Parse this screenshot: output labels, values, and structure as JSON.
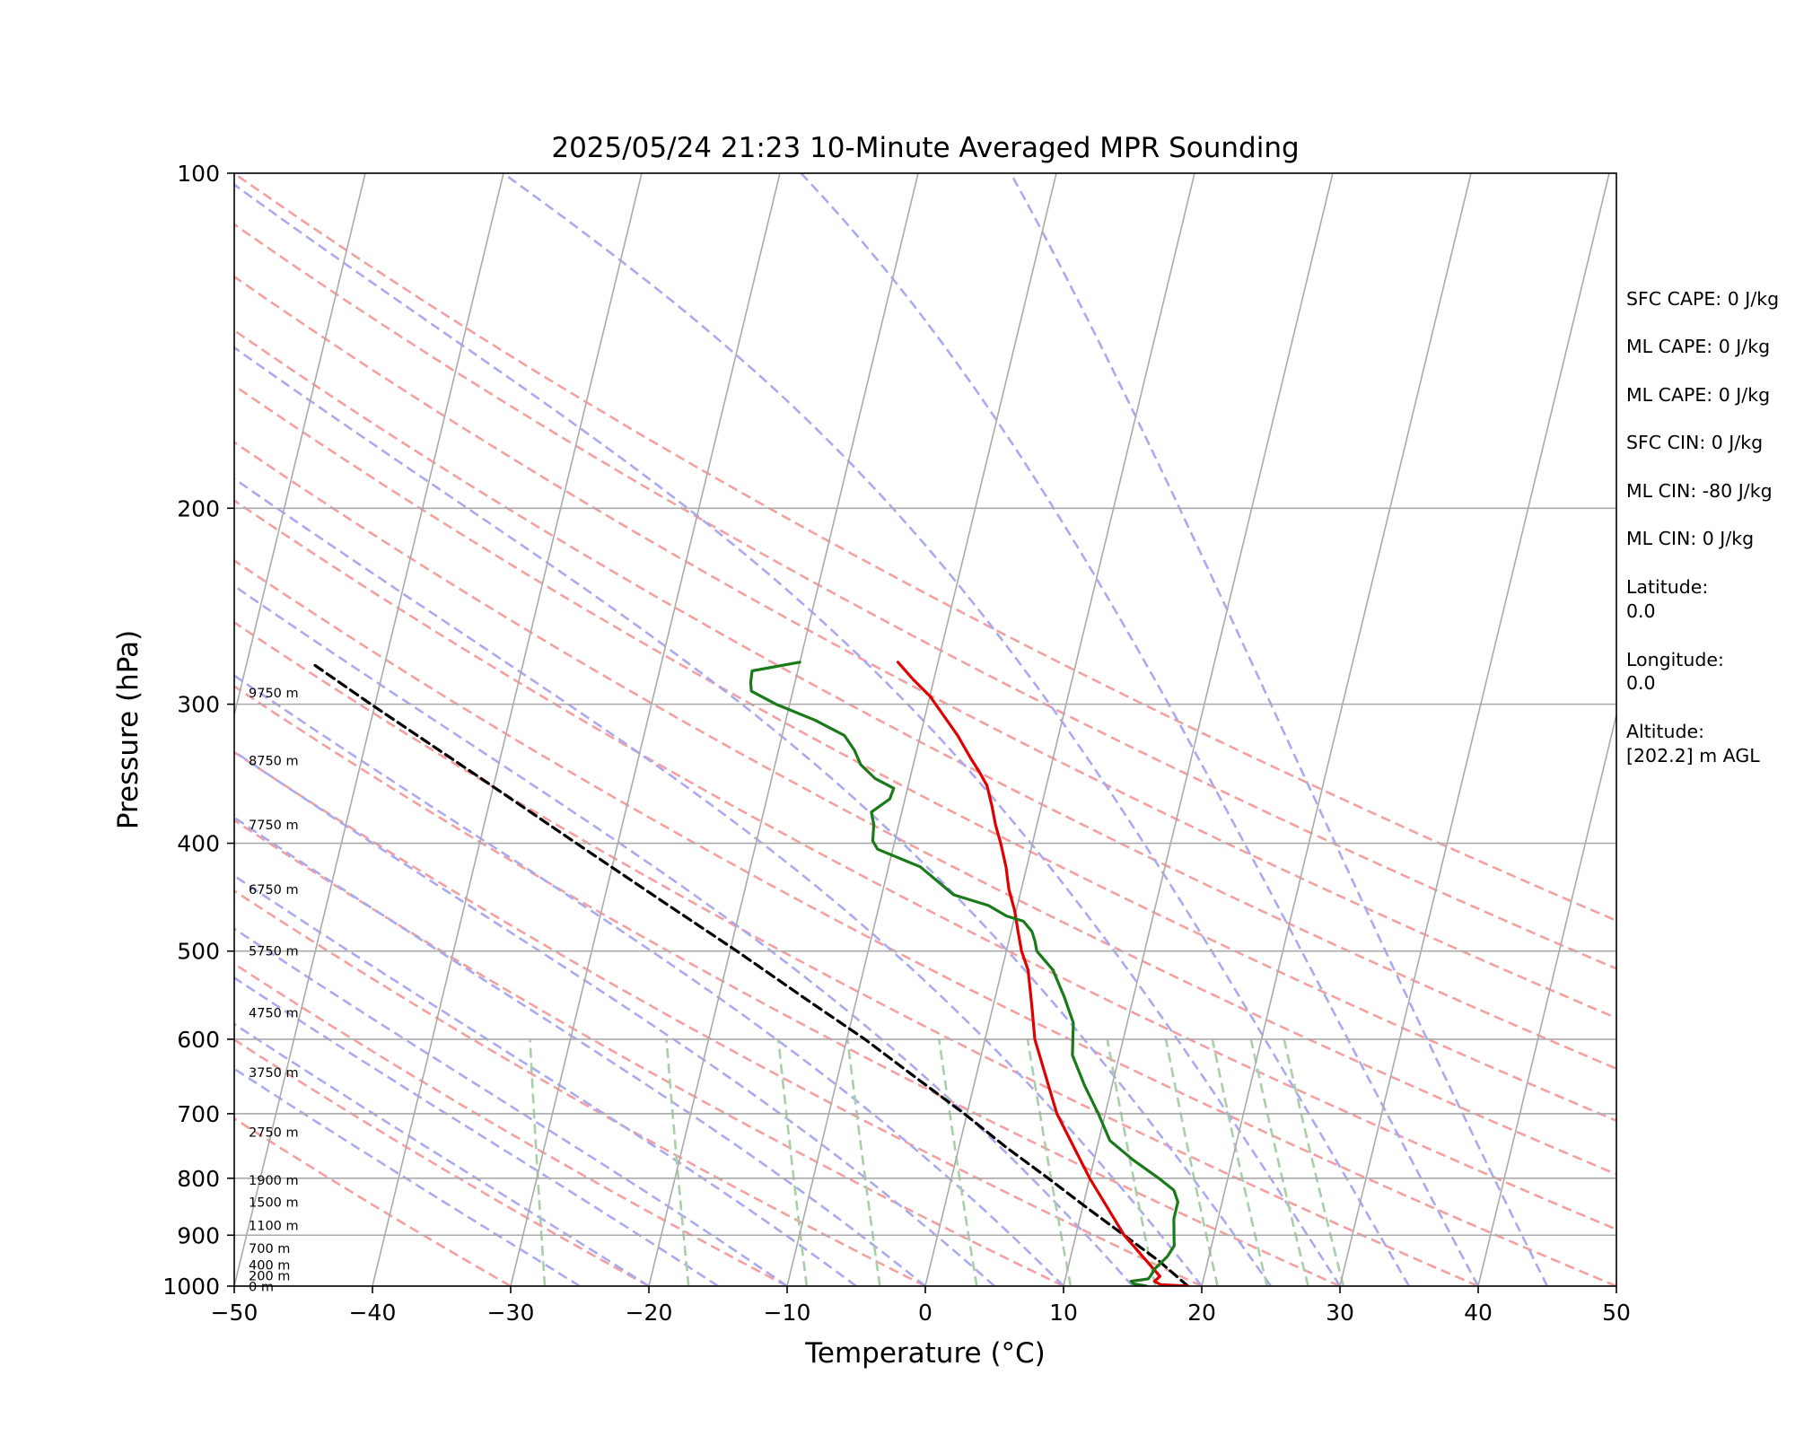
{
  "chart_data": {
    "type": "line",
    "title": "2025/05/24 21:23 10-Minute Averaged MPR Sounding",
    "xlabel": "Temperature (°C)",
    "ylabel": "Pressure (hPa)",
    "xlim": [
      -50,
      50
    ],
    "ylim": [
      1000,
      100
    ],
    "y_scale": "log",
    "skew": true,
    "grid": true,
    "x_ticks": [
      -50,
      -40,
      -30,
      -20,
      -10,
      0,
      10,
      20,
      30,
      40,
      50
    ],
    "x_tick_labels": [
      "−50",
      "−40",
      "−30",
      "−20",
      "−10",
      "0",
      "10",
      "20",
      "30",
      "40",
      "50"
    ],
    "y_ticks": [
      1000,
      900,
      800,
      700,
      600,
      500,
      400,
      300,
      200,
      100
    ],
    "y_tick_labels": [
      "1000",
      "900",
      "800",
      "700",
      "600",
      "500",
      "400",
      "300",
      "200",
      "100"
    ],
    "colors": {
      "temperature": "#e00000",
      "dewpoint": "#1a7a1a",
      "parcel": "#000000",
      "isotherm": "#aaaaaa",
      "dry_adiabat": "#f4a0a0",
      "moist_adiabat": "#aaaaf0",
      "mixing_ratio": "#a8d0a8"
    },
    "series": [
      {
        "key": "temperature",
        "points": [
          [
            1000,
            19.0
          ],
          [
            997,
            17.0
          ],
          [
            990,
            16.5
          ],
          [
            980,
            16.8
          ],
          [
            900,
            13.5
          ],
          [
            800,
            10.0
          ],
          [
            700,
            6.5
          ],
          [
            600,
            3.6
          ],
          [
            560,
            2.8
          ],
          [
            520,
            1.9
          ],
          [
            500,
            1.1
          ],
          [
            480,
            0.5
          ],
          [
            460,
            -0.1
          ],
          [
            440,
            -0.9
          ],
          [
            420,
            -1.5
          ],
          [
            400,
            -2.3
          ],
          [
            385,
            -3.0
          ],
          [
            370,
            -3.6
          ],
          [
            355,
            -4.3
          ],
          [
            345,
            -5.1
          ],
          [
            335,
            -6.0
          ],
          [
            320,
            -7.3
          ],
          [
            305,
            -8.9
          ],
          [
            295,
            -10.0
          ],
          [
            285,
            -11.5
          ],
          [
            275,
            -12.9
          ]
        ]
      },
      {
        "key": "dewpoint",
        "points": [
          [
            1000,
            16.0
          ],
          [
            995,
            15.0
          ],
          [
            990,
            14.8
          ],
          [
            985,
            16.0
          ],
          [
            980,
            16.1
          ],
          [
            965,
            16.3
          ],
          [
            940,
            17.0
          ],
          [
            920,
            17.3
          ],
          [
            900,
            17.1
          ],
          [
            870,
            16.8
          ],
          [
            840,
            16.8
          ],
          [
            820,
            16.3
          ],
          [
            800,
            15.0
          ],
          [
            770,
            12.8
          ],
          [
            740,
            10.8
          ],
          [
            700,
            9.5
          ],
          [
            660,
            8.0
          ],
          [
            620,
            6.6
          ],
          [
            580,
            6.1
          ],
          [
            550,
            5.0
          ],
          [
            520,
            3.7
          ],
          [
            500,
            2.2
          ],
          [
            490,
            1.9
          ],
          [
            480,
            1.5
          ],
          [
            470,
            0.7
          ],
          [
            465,
            -0.6
          ],
          [
            455,
            -2.1
          ],
          [
            445,
            -4.8
          ],
          [
            420,
            -7.7
          ],
          [
            405,
            -11.1
          ],
          [
            398,
            -11.6
          ],
          [
            385,
            -11.8
          ],
          [
            375,
            -12.2
          ],
          [
            365,
            -11.1
          ],
          [
            357,
            -11.0
          ],
          [
            350,
            -12.5
          ],
          [
            340,
            -13.8
          ],
          [
            330,
            -14.5
          ],
          [
            320,
            -15.5
          ],
          [
            310,
            -17.9
          ],
          [
            300,
            -21.0
          ],
          [
            292,
            -23.0
          ],
          [
            287,
            -23.2
          ],
          [
            280,
            -23.3
          ],
          [
            275,
            -20.0
          ]
        ]
      },
      {
        "key": "parcel",
        "points": [
          [
            1000,
            19.0
          ],
          [
            950,
            16.5
          ],
          [
            900,
            13.5
          ],
          [
            850,
            10.3
          ],
          [
            800,
            7.0
          ],
          [
            750,
            3.4
          ],
          [
            700,
            -0.2
          ],
          [
            650,
            -4.3
          ],
          [
            600,
            -8.7
          ],
          [
            550,
            -13.9
          ],
          [
            500,
            -19.5
          ],
          [
            450,
            -25.9
          ],
          [
            400,
            -33.0
          ],
          [
            350,
            -41.0
          ],
          [
            300,
            -50.3
          ],
          [
            276,
            -55.2
          ]
        ]
      }
    ],
    "height_labels": [
      {
        "text": "0 m",
        "p": 1001
      },
      {
        "text": "200 m",
        "p": 979
      },
      {
        "text": "400 m",
        "p": 957
      },
      {
        "text": "700 m",
        "p": 925
      },
      {
        "text": "1100 m",
        "p": 882
      },
      {
        "text": "1500 m",
        "p": 841
      },
      {
        "text": "1900 m",
        "p": 803
      },
      {
        "text": "2750 m",
        "p": 727
      },
      {
        "text": "3750 m",
        "p": 643
      },
      {
        "text": "4750 m",
        "p": 568
      },
      {
        "text": "5750 m",
        "p": 500
      },
      {
        "text": "6750 m",
        "p": 440
      },
      {
        "text": "7750 m",
        "p": 385
      },
      {
        "text": "8750 m",
        "p": 337
      },
      {
        "text": "9750 m",
        "p": 293
      }
    ]
  },
  "stats": {
    "sfc_cape": "SFC CAPE: 0 J/kg",
    "ml_cape_1": "ML CAPE: 0 J/kg",
    "ml_cape_2": "ML CAPE: 0 J/kg",
    "sfc_cin": "SFC CIN: 0 J/kg",
    "ml_cin_1": "ML CIN: -80 J/kg",
    "ml_cin_2": "ML CIN: 0 J/kg",
    "latitude_label": "Latitude:",
    "latitude_value": "0.0",
    "longitude_label": "Longitude:",
    "longitude_value": "0.0",
    "altitude_label": "Altitude:",
    "altitude_value": "[202.2] m AGL"
  }
}
